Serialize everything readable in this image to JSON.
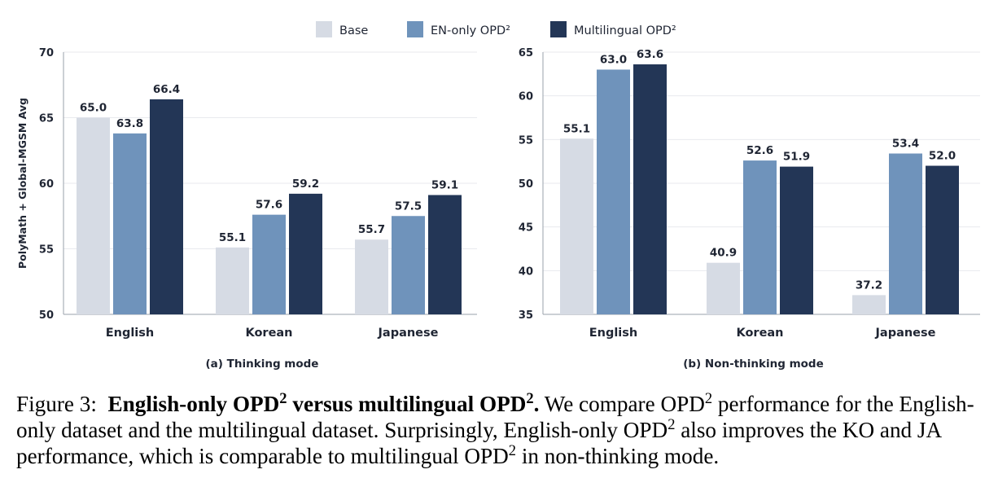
{
  "legend": [
    "Base",
    "EN-only OPD²",
    "Multilingual OPD²"
  ],
  "colors": {
    "base": "#d6dbe4",
    "en_only": "#6f93bb",
    "multilingual": "#233656",
    "text": "#1f2533",
    "axis": "#9aa1ab",
    "grid": "#e8eaee"
  },
  "chart_data": [
    {
      "type": "bar",
      "title": "(a) Thinking mode",
      "categories": [
        "English",
        "Korean",
        "Japanese"
      ],
      "ylabel": "PolyMath + Global-MGSM Avg",
      "xlabel": "",
      "ylim": [
        50,
        70
      ],
      "yticks": [
        50,
        55,
        60,
        65,
        70
      ],
      "grid": true,
      "legend_placement": "top-center",
      "series": [
        {
          "name": "Base",
          "values": [
            65.0,
            55.1,
            55.7
          ],
          "labels": [
            "65.0",
            "55.1",
            "55.7"
          ]
        },
        {
          "name": "EN-only OPD²",
          "values": [
            63.8,
            57.6,
            57.5
          ],
          "labels": [
            "63.8",
            "57.6",
            "57.5"
          ]
        },
        {
          "name": "Multilingual OPD²",
          "values": [
            66.4,
            59.2,
            59.1
          ],
          "labels": [
            "66.4",
            "59.2",
            "59.1"
          ]
        }
      ]
    },
    {
      "type": "bar",
      "title": "(b) Non-thinking mode",
      "categories": [
        "English",
        "Korean",
        "Japanese"
      ],
      "ylabel": "",
      "xlabel": "",
      "ylim": [
        35,
        65
      ],
      "yticks": [
        35,
        40,
        45,
        50,
        55,
        60,
        65
      ],
      "grid": true,
      "legend_placement": "top-center",
      "series": [
        {
          "name": "Base",
          "values": [
            55.1,
            40.9,
            37.2
          ],
          "labels": [
            "55.1",
            "40.9",
            "37.2"
          ]
        },
        {
          "name": "EN-only OPD²",
          "values": [
            63.0,
            52.6,
            53.4
          ],
          "labels": [
            "63.0",
            "52.6",
            "53.4"
          ]
        },
        {
          "name": "Multilingual OPD²",
          "values": [
            63.6,
            51.9,
            52.0
          ],
          "labels": [
            "63.6",
            "51.9",
            "52.0"
          ]
        }
      ]
    }
  ],
  "caption": {
    "label": "Figure 3:",
    "bold_a": "English-only OPD",
    "bold_sup_a": "2",
    "bold_b": " versus multilingual OPD",
    "bold_sup_b": "2",
    "bold_c": ".",
    "t1": " We compare OPD",
    "sup1": "2",
    "t2": " performance for the English-only dataset and the multilingual dataset. Surprisingly, English-only OPD",
    "sup2": "2",
    "t3": " also improves the KO and JA performance, which is comparable to multilingual OPD",
    "sup3": "2",
    "t4": " in non-thinking mode."
  }
}
